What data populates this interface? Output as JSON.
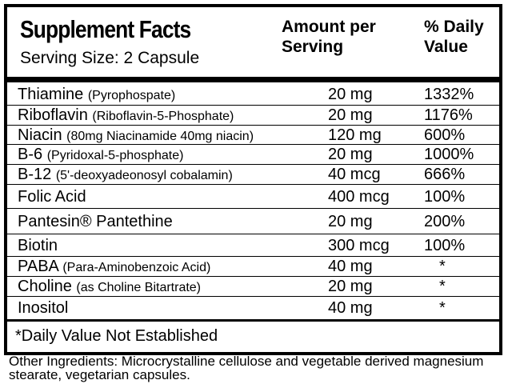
{
  "header": {
    "title": "Supplement Facts",
    "serving_size": "Serving Size: 2 Capsule",
    "amount_heading": "Amount per Serving",
    "daily_value_heading": "% Daily Value"
  },
  "rows": [
    {
      "name": "Thiamine",
      "detail": "(Pyrophospate)",
      "amount": "20 mg",
      "daily_value": "1332%"
    },
    {
      "name": "Riboflavin",
      "detail": "(Riboflavin-5-Phosphate)",
      "amount": "20 mg",
      "daily_value": "1176%"
    },
    {
      "name": "Niacin",
      "detail": "(80mg Niacinamide 40mg niacin)",
      "amount": "120 mg",
      "daily_value": "600%"
    },
    {
      "name": "B-6",
      "detail": "(Pyridoxal-5-phosphate)",
      "amount": "20 mg",
      "daily_value": "1000%"
    },
    {
      "name": "B-12",
      "detail": "(5'-deoxyadeonosyl cobalamin)",
      "amount": "40 mcg",
      "daily_value": "666%"
    },
    {
      "name": "Folic Acid",
      "amount": "400 mcg",
      "daily_value": "100%"
    },
    {
      "name": "Pantesin® Pantethine",
      "amount": "20 mg",
      "daily_value": "200%"
    },
    {
      "name": "Biotin",
      "amount": "300 mcg",
      "daily_value": "100%"
    },
    {
      "name": "PABA",
      "detail": "(Para-Aminobenzoic Acid)",
      "amount": "40 mg",
      "daily_value": "*"
    },
    {
      "name": "Choline",
      "detail": "(as Choline Bitartrate)",
      "amount": "20 mg",
      "daily_value": "*"
    },
    {
      "name": "Inositol",
      "amount": "40 mg",
      "daily_value": "*"
    }
  ],
  "footnote": "*Daily Value Not Established",
  "other_ingredients": "Other Ingredients: Microcrystalline cellulose and vegetable derived magnesium stearate, vegetarian capsules."
}
